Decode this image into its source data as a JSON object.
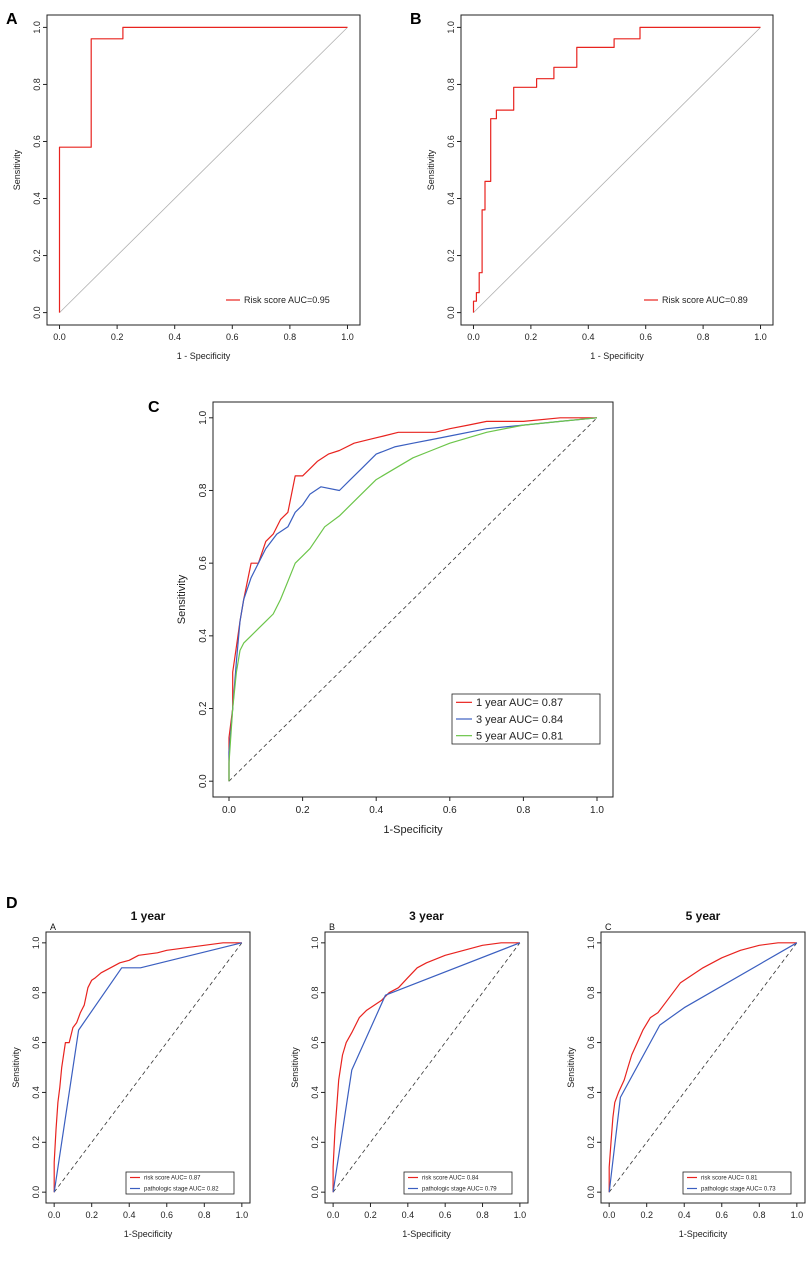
{
  "figure": {
    "panel_letters": [
      "A",
      "B",
      "C",
      "D"
    ]
  },
  "colors": {
    "red": "#e8231f",
    "blue": "#3b5fc0",
    "green": "#6cc54a",
    "gray": "#b0b0b0",
    "dash": "#333333"
  },
  "chart_data": [
    {
      "id": "A",
      "type": "line",
      "xlabel": "1 - Specificity",
      "ylabel": "Sensitivity",
      "xlim": [
        0,
        1
      ],
      "ylim": [
        0,
        1
      ],
      "xticks": [
        "0.0",
        "0.2",
        "0.4",
        "0.6",
        "0.8",
        "1.0"
      ],
      "yticks": [
        "0.0",
        "0.2",
        "0.4",
        "0.6",
        "0.8",
        "1.0"
      ],
      "legend_position": "bottom-right",
      "diagonal": "solid-gray",
      "series": [
        {
          "name": "Risk score AUC=0.95",
          "color": "red",
          "x": [
            0,
            0,
            0.11,
            0.11,
            0.22,
            0.22,
            1
          ],
          "y": [
            0,
            0.58,
            0.58,
            0.96,
            0.96,
            1,
            1
          ]
        }
      ]
    },
    {
      "id": "B",
      "type": "line",
      "xlabel": "1 - Specificity",
      "ylabel": "Sensitivity",
      "xlim": [
        0,
        1
      ],
      "ylim": [
        0,
        1
      ],
      "xticks": [
        "0.0",
        "0.2",
        "0.4",
        "0.6",
        "0.8",
        "1.0"
      ],
      "yticks": [
        "0.0",
        "0.2",
        "0.4",
        "0.6",
        "0.8",
        "1.0"
      ],
      "legend_position": "bottom-right",
      "diagonal": "solid-gray",
      "series": [
        {
          "name": "Risk score AUC=0.89",
          "color": "red",
          "x": [
            0,
            0,
            0.01,
            0.01,
            0.02,
            0.02,
            0.03,
            0.03,
            0.04,
            0.04,
            0.06,
            0.06,
            0.08,
            0.08,
            0.14,
            0.14,
            0.22,
            0.22,
            0.28,
            0.28,
            0.36,
            0.36,
            0.49,
            0.49,
            0.58,
            0.58,
            1
          ],
          "y": [
            0,
            0.04,
            0.04,
            0.07,
            0.07,
            0.14,
            0.14,
            0.36,
            0.36,
            0.46,
            0.46,
            0.68,
            0.68,
            0.71,
            0.71,
            0.79,
            0.79,
            0.82,
            0.82,
            0.86,
            0.86,
            0.93,
            0.93,
            0.96,
            0.96,
            1,
            1
          ]
        }
      ]
    },
    {
      "id": "C",
      "type": "line",
      "xlabel": "1-Specificity",
      "ylabel": "Sensitivity",
      "xlim": [
        0,
        1
      ],
      "ylim": [
        0,
        1
      ],
      "xticks": [
        "0.0",
        "0.2",
        "0.4",
        "0.6",
        "0.8",
        "1.0"
      ],
      "yticks": [
        "0.0",
        "0.2",
        "0.4",
        "0.6",
        "0.8",
        "1.0"
      ],
      "legend_position": "bottom-right",
      "diagonal": "dashed",
      "series": [
        {
          "name": "1 year AUC= 0.87",
          "color": "red",
          "x": [
            0,
            0,
            0.01,
            0.01,
            0.02,
            0.03,
            0.04,
            0.05,
            0.06,
            0.08,
            0.1,
            0.12,
            0.14,
            0.16,
            0.18,
            0.2,
            0.22,
            0.24,
            0.27,
            0.3,
            0.34,
            0.38,
            0.42,
            0.46,
            0.5,
            0.56,
            0.6,
            0.65,
            0.7,
            0.8,
            0.9,
            1
          ],
          "y": [
            0,
            0.12,
            0.2,
            0.3,
            0.37,
            0.44,
            0.5,
            0.55,
            0.6,
            0.6,
            0.66,
            0.68,
            0.72,
            0.74,
            0.84,
            0.84,
            0.86,
            0.88,
            0.9,
            0.91,
            0.93,
            0.94,
            0.95,
            0.96,
            0.96,
            0.96,
            0.97,
            0.98,
            0.99,
            0.99,
            1,
            1
          ]
        },
        {
          "name": "3 year AUC= 0.84",
          "color": "blue",
          "x": [
            0,
            0,
            0.01,
            0.02,
            0.03,
            0.04,
            0.06,
            0.08,
            0.1,
            0.13,
            0.16,
            0.18,
            0.2,
            0.22,
            0.25,
            0.3,
            0.33,
            0.36,
            0.4,
            0.45,
            0.5,
            0.55,
            0.6,
            0.7,
            0.8,
            0.9,
            1
          ],
          "y": [
            0,
            0.08,
            0.2,
            0.33,
            0.44,
            0.5,
            0.56,
            0.6,
            0.64,
            0.68,
            0.7,
            0.74,
            0.76,
            0.79,
            0.81,
            0.8,
            0.83,
            0.86,
            0.9,
            0.92,
            0.93,
            0.94,
            0.95,
            0.97,
            0.98,
            0.99,
            1
          ]
        },
        {
          "name": "5 year AUC= 0.81",
          "color": "green",
          "x": [
            0,
            0,
            0.01,
            0.02,
            0.03,
            0.04,
            0.06,
            0.08,
            0.1,
            0.12,
            0.14,
            0.16,
            0.18,
            0.2,
            0.22,
            0.26,
            0.3,
            0.35,
            0.4,
            0.45,
            0.5,
            0.55,
            0.6,
            0.7,
            0.8,
            0.9,
            1
          ],
          "y": [
            0,
            0.05,
            0.2,
            0.3,
            0.36,
            0.38,
            0.4,
            0.42,
            0.44,
            0.46,
            0.5,
            0.55,
            0.6,
            0.62,
            0.64,
            0.7,
            0.73,
            0.78,
            0.83,
            0.86,
            0.89,
            0.91,
            0.93,
            0.96,
            0.98,
            0.99,
            1
          ]
        }
      ]
    },
    {
      "id": "D1",
      "type": "line",
      "title": "1 year",
      "sub_letter": "A",
      "xlabel": "1-Specificity",
      "ylabel": "Sensitivity",
      "xlim": [
        0,
        1
      ],
      "ylim": [
        0,
        1
      ],
      "xticks": [
        "0.0",
        "0.2",
        "0.4",
        "0.6",
        "0.8",
        "1.0"
      ],
      "yticks": [
        "0.0",
        "0.2",
        "0.4",
        "0.6",
        "0.8",
        "1.0"
      ],
      "legend_position": "bottom-right",
      "diagonal": "dashed",
      "series": [
        {
          "name": "risk score AUC= 0.87",
          "color": "red",
          "x": [
            0,
            0,
            0.01,
            0.02,
            0.03,
            0.04,
            0.06,
            0.08,
            0.1,
            0.12,
            0.14,
            0.16,
            0.18,
            0.2,
            0.22,
            0.25,
            0.3,
            0.35,
            0.4,
            0.45,
            0.55,
            0.6,
            0.7,
            0.8,
            0.9,
            1
          ],
          "y": [
            0,
            0.12,
            0.25,
            0.36,
            0.42,
            0.5,
            0.6,
            0.6,
            0.66,
            0.68,
            0.72,
            0.75,
            0.82,
            0.85,
            0.86,
            0.88,
            0.9,
            0.92,
            0.93,
            0.95,
            0.96,
            0.97,
            0.98,
            0.99,
            1,
            1
          ]
        },
        {
          "name": "pathologic stage AUC= 0.82",
          "color": "blue",
          "x": [
            0,
            0.13,
            0.36,
            0.46,
            1
          ],
          "y": [
            0,
            0.65,
            0.9,
            0.9,
            1
          ]
        }
      ]
    },
    {
      "id": "D2",
      "type": "line",
      "title": "3 year",
      "sub_letter": "B",
      "xlabel": "1-Specificity",
      "ylabel": "Sensitivity",
      "xlim": [
        0,
        1
      ],
      "ylim": [
        0,
        1
      ],
      "xticks": [
        "0.0",
        "0.2",
        "0.4",
        "0.6",
        "0.8",
        "1.0"
      ],
      "yticks": [
        "0.0",
        "0.2",
        "0.4",
        "0.6",
        "0.8",
        "1.0"
      ],
      "legend_position": "bottom-right",
      "diagonal": "dashed",
      "series": [
        {
          "name": "risk score AUC= 0.84",
          "color": "red",
          "x": [
            0,
            0,
            0.01,
            0.02,
            0.03,
            0.05,
            0.07,
            0.1,
            0.14,
            0.18,
            0.22,
            0.26,
            0.3,
            0.35,
            0.4,
            0.45,
            0.5,
            0.6,
            0.7,
            0.8,
            0.9,
            1
          ],
          "y": [
            0,
            0.1,
            0.25,
            0.35,
            0.45,
            0.55,
            0.6,
            0.64,
            0.7,
            0.73,
            0.75,
            0.77,
            0.8,
            0.82,
            0.86,
            0.9,
            0.92,
            0.95,
            0.97,
            0.99,
            1,
            1
          ]
        },
        {
          "name": "pathologic stage AUC= 0.79",
          "color": "blue",
          "x": [
            0,
            0.1,
            0.28,
            1
          ],
          "y": [
            0,
            0.49,
            0.79,
            1
          ]
        }
      ]
    },
    {
      "id": "D3",
      "type": "line",
      "title": "5 year",
      "sub_letter": "C",
      "xlabel": "1-Specificity",
      "ylabel": "Sensitivity",
      "xlim": [
        0,
        1
      ],
      "ylim": [
        0,
        1
      ],
      "xticks": [
        "0.0",
        "0.2",
        "0.4",
        "0.6",
        "0.8",
        "1.0"
      ],
      "yticks": [
        "0.0",
        "0.2",
        "0.4",
        "0.6",
        "0.8",
        "1.0"
      ],
      "legend_position": "bottom-right",
      "diagonal": "dashed",
      "series": [
        {
          "name": "risk score AUC= 0.81",
          "color": "red",
          "x": [
            0,
            0,
            0.01,
            0.02,
            0.03,
            0.05,
            0.08,
            0.1,
            0.12,
            0.15,
            0.18,
            0.22,
            0.26,
            0.3,
            0.34,
            0.38,
            0.42,
            0.46,
            0.5,
            0.55,
            0.6,
            0.7,
            0.8,
            0.9,
            1
          ],
          "y": [
            0,
            0.1,
            0.2,
            0.3,
            0.36,
            0.4,
            0.45,
            0.5,
            0.55,
            0.6,
            0.65,
            0.7,
            0.72,
            0.76,
            0.8,
            0.84,
            0.86,
            0.88,
            0.9,
            0.92,
            0.94,
            0.97,
            0.99,
            1,
            1
          ]
        },
        {
          "name": "pathologic stage AUC= 0.73",
          "color": "blue",
          "x": [
            0,
            0.06,
            0.27,
            0.4,
            1
          ],
          "y": [
            0,
            0.38,
            0.67,
            0.74,
            1
          ]
        }
      ]
    }
  ]
}
